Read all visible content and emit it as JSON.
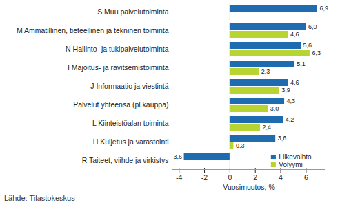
{
  "chart_data": {
    "type": "bar",
    "orientation": "horizontal",
    "caption": "Lähde: Tilastokeskus",
    "xlabel": "Vuosimuutos, %",
    "categories": [
      "S Muu palvelutoiminta",
      "M Ammatillinen, tieteellinen ja tekninen toiminta",
      "N Hallinto- ja tukipalvelutoiminta",
      "I Majoitus- ja ravitsemistoiminta",
      "J Informaatio ja viestintä",
      "Palvelut yhteensä (pl.kauppa)",
      "L Kiinteistöalan toiminta",
      "H Kuljetus ja varastointi",
      "R Taiteet, viihde ja virkistys"
    ],
    "series": [
      {
        "name": "Liikevaihto",
        "color": "#1f6bb0",
        "values": [
          6.9,
          6.0,
          5.6,
          5.1,
          4.6,
          4.3,
          4.2,
          3.6,
          -3.6
        ],
        "value_labels": [
          "6,9",
          "6,0",
          "5,6",
          "5,1",
          "4,6",
          "4,3",
          "4,2",
          "3,6",
          "-3,6"
        ]
      },
      {
        "name": "Volyymi",
        "color": "#b8d433",
        "values": [
          null,
          4.6,
          6.3,
          2.3,
          3.9,
          3.0,
          2.4,
          0.3,
          null
        ],
        "value_labels": [
          null,
          "4,6",
          "6,3",
          "2,3",
          "3,9",
          "3,0",
          "2,4",
          "0,3",
          null
        ]
      }
    ],
    "xlim": [
      -4.5,
      7.5
    ],
    "xticks": [
      -4,
      -2,
      0,
      2,
      4,
      6
    ],
    "grid": false,
    "data_labels": true,
    "legend": "lower right"
  }
}
